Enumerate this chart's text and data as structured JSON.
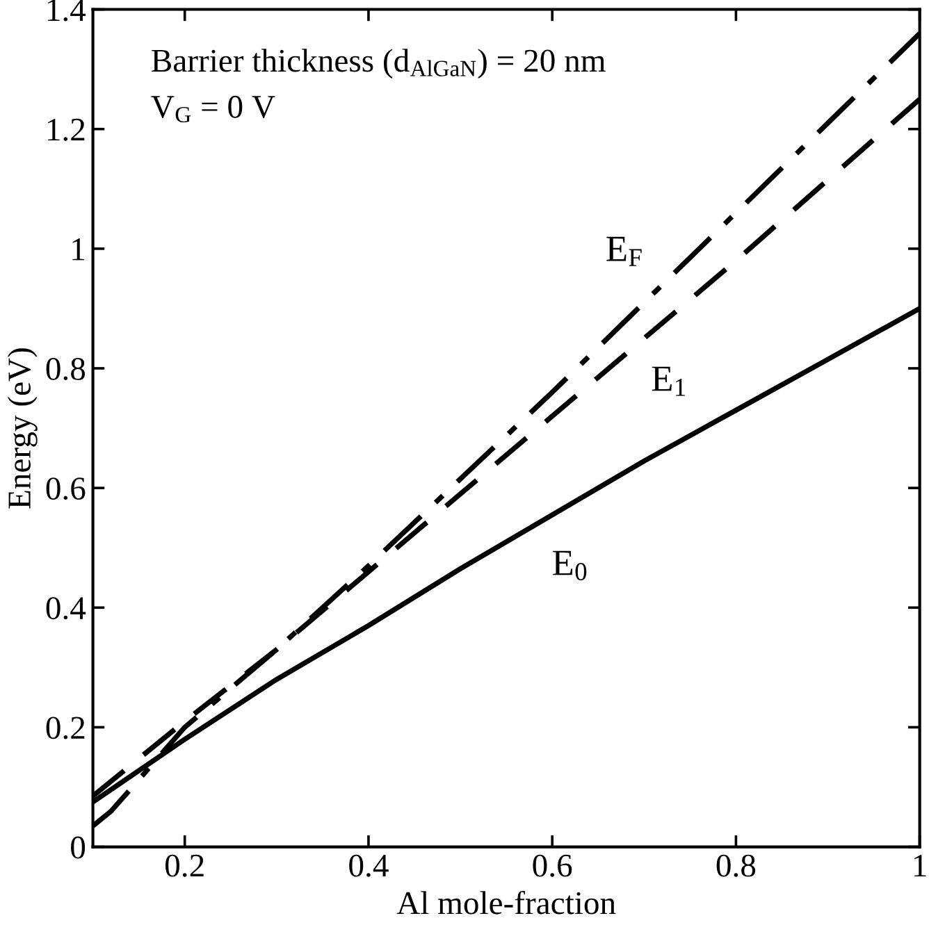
{
  "chart_data": {
    "type": "line",
    "xlabel": "Al mole-fraction",
    "ylabel": "Energy (eV)",
    "x": [
      0.1,
      0.2,
      0.3,
      0.4,
      0.5,
      0.6,
      0.7,
      0.8,
      0.9,
      1.0
    ],
    "series": [
      {
        "color": "#000000",
        "line_style": "solid",
        "values": [
          0.075,
          0.18,
          0.28,
          0.37,
          0.465,
          0.555,
          0.645,
          0.73,
          0.815,
          0.9
        ]
      },
      {
        "color": "#000000",
        "line_style": "dashed",
        "values": [
          0.085,
          0.21,
          0.33,
          0.46,
          0.59,
          0.72,
          0.85,
          0.98,
          1.115,
          1.25
        ]
      },
      {
        "color": "#000000",
        "line_style": "dashdot",
        "x": [
          0.1,
          0.12,
          0.2,
          0.3,
          0.4,
          0.5,
          0.6,
          0.7,
          0.8,
          0.9,
          1.0
        ],
        "values": [
          0.035,
          0.06,
          0.2,
          0.33,
          0.47,
          0.615,
          0.76,
          0.91,
          1.06,
          1.21,
          1.36
        ]
      }
    ],
    "xlim": [
      0.1,
      1
    ],
    "ylim": [
      0,
      1.4
    ],
    "xticks": [
      0.2,
      0.4,
      0.6,
      0.8,
      1
    ],
    "yticks": [
      0,
      0.2,
      0.4,
      0.6,
      0.8,
      1,
      1.2,
      1.4
    ],
    "grid": false,
    "legend": false,
    "marker": "none",
    "annotations": [
      "Barrier thickness (d$_{AlGaN}$) = 20 nm",
      "V$_{G}$ = 0 V",
      "E$_{F}$",
      "E$_{1}$",
      "E$_{0}$"
    ]
  }
}
